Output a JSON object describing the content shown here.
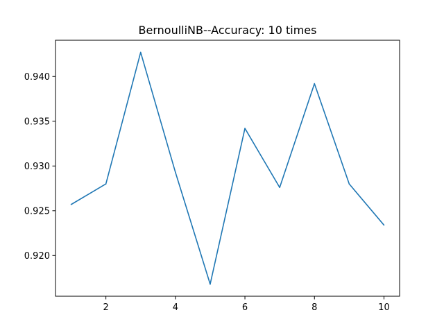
{
  "chart_data": {
    "type": "line",
    "title": "BernoulliNB--Accuracy: 10 times",
    "xlabel": "",
    "ylabel": "",
    "x": [
      1,
      2,
      3,
      4,
      5,
      6,
      7,
      8,
      9,
      10
    ],
    "series": [
      {
        "color": "#1f77b4",
        "values": [
          0.9257,
          0.928,
          0.9427,
          0.9293,
          0.9168,
          0.9342,
          0.9276,
          0.9392,
          0.928,
          0.9234
        ]
      }
    ],
    "xlim": [
      0.55,
      10.45
    ],
    "ylim": [
      0.91545,
      0.94405
    ],
    "xticks": [
      2,
      4,
      6,
      8,
      10
    ],
    "xtick_labels": [
      "2",
      "4",
      "6",
      "8",
      "10"
    ],
    "yticks": [
      0.92,
      0.925,
      0.93,
      0.935,
      0.94
    ],
    "ytick_labels": [
      "0.920",
      "0.925",
      "0.930",
      "0.935",
      "0.940"
    ],
    "grid": false,
    "legend": "none"
  }
}
